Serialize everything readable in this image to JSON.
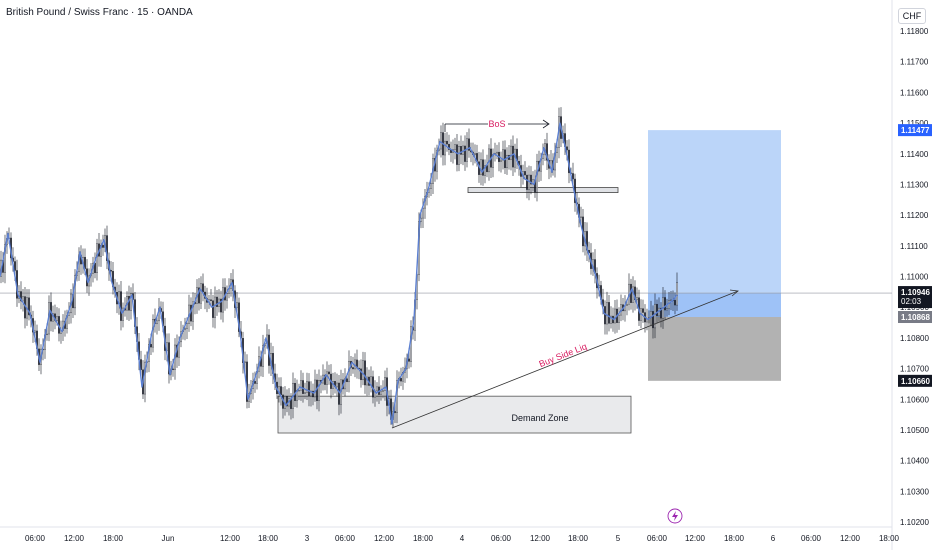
{
  "header": {
    "title": "British Pound / Swiss Franc · 15 · OANDA",
    "currency": "CHF"
  },
  "price_badges": {
    "target": "1.11477",
    "last_price": "1.10946",
    "countdown": "02:03",
    "entry": "1.10868",
    "stop": "1.10660"
  },
  "annotations": {
    "bos": "BoS",
    "buy_side_liq": "Buy Side Liq",
    "demand_zone": "Demand Zone"
  },
  "colors": {
    "candle": "#131722",
    "line": "#5b7fd1",
    "profit_zone": "#bbd5f9",
    "profit_strong": "#9ec2f7",
    "loss_zone": "#b2b2b2",
    "demand_fill": "#e9eaec",
    "label_pink": "#d81b60",
    "target_badge": "#2962ff",
    "last_badge": "#131722",
    "stop_badge": "#131722",
    "entry_badge": "#787b86",
    "grid_text": "#131722"
  },
  "icons": {
    "event": "lightning-icon"
  },
  "chart_data": {
    "type": "candlestick",
    "title": "British Pound / Swiss Franc · 15 · OANDA",
    "ylim": [
      1.1019,
      1.119
    ],
    "y_ticks": [
      "1.11800",
      "1.11700",
      "1.11600",
      "1.11500",
      "1.11400",
      "1.11300",
      "1.11200",
      "1.11100",
      "1.11000",
      "1.10900",
      "1.10800",
      "1.10700",
      "1.10600",
      "1.10500",
      "1.10400",
      "1.10300",
      "1.10200"
    ],
    "x_ticks": [
      "06:00",
      "12:00",
      "18:00",
      "Jun",
      "12:00",
      "18:00",
      "3",
      "06:00",
      "12:00",
      "18:00",
      "4",
      "06:00",
      "12:00",
      "18:00",
      "5",
      "06:00",
      "12:00",
      "18:00",
      "6",
      "06:00",
      "12:00",
      "18:00"
    ],
    "close_path": [
      [
        0,
        1.11
      ],
      [
        8,
        1.1114
      ],
      [
        18,
        1.1094
      ],
      [
        30,
        1.1088
      ],
      [
        40,
        1.1072
      ],
      [
        50,
        1.1089
      ],
      [
        62,
        1.1082
      ],
      [
        72,
        1.1092
      ],
      [
        80,
        1.1108
      ],
      [
        88,
        1.1098
      ],
      [
        96,
        1.1106
      ],
      [
        104,
        1.1112
      ],
      [
        112,
        1.1098
      ],
      [
        122,
        1.1088
      ],
      [
        132,
        1.1094
      ],
      [
        142,
        1.1064
      ],
      [
        152,
        1.1082
      ],
      [
        160,
        1.109
      ],
      [
        170,
        1.1068
      ],
      [
        180,
        1.108
      ],
      [
        190,
        1.1088
      ],
      [
        200,
        1.1096
      ],
      [
        212,
        1.109
      ],
      [
        222,
        1.1092
      ],
      [
        232,
        1.1098
      ],
      [
        240,
        1.1082
      ],
      [
        248,
        1.106
      ],
      [
        258,
        1.107
      ],
      [
        266,
        1.108
      ],
      [
        276,
        1.1064
      ],
      [
        286,
        1.1058
      ],
      [
        300,
        1.1064
      ],
      [
        314,
        1.1062
      ],
      [
        326,
        1.1068
      ],
      [
        340,
        1.1062
      ],
      [
        352,
        1.1072
      ],
      [
        364,
        1.1068
      ],
      [
        376,
        1.1062
      ],
      [
        386,
        1.1064
      ],
      [
        392,
        1.1052
      ],
      [
        398,
        1.1066
      ],
      [
        406,
        1.107
      ],
      [
        414,
        1.1086
      ],
      [
        420,
        1.112
      ],
      [
        428,
        1.1128
      ],
      [
        434,
        1.1136
      ],
      [
        440,
        1.1144
      ],
      [
        448,
        1.1142
      ],
      [
        458,
        1.114
      ],
      [
        470,
        1.1142
      ],
      [
        482,
        1.1134
      ],
      [
        494,
        1.114
      ],
      [
        504,
        1.1138
      ],
      [
        514,
        1.114
      ],
      [
        524,
        1.1132
      ],
      [
        534,
        1.113
      ],
      [
        544,
        1.1142
      ],
      [
        552,
        1.1134
      ],
      [
        560,
        1.115
      ],
      [
        568,
        1.1138
      ],
      [
        574,
        1.1128
      ],
      [
        580,
        1.1118
      ],
      [
        588,
        1.1108
      ],
      [
        596,
        1.11
      ],
      [
        604,
        1.1088
      ],
      [
        614,
        1.1086
      ],
      [
        624,
        1.109
      ],
      [
        632,
        1.1096
      ],
      [
        640,
        1.1088
      ],
      [
        648,
        1.1086
      ],
      [
        656,
        1.1088
      ],
      [
        664,
        1.109
      ],
      [
        672,
        1.1092
      ],
      [
        677,
        1.1094
      ]
    ],
    "current_price": 1.10946,
    "zones": {
      "demand": {
        "label": "Demand Zone",
        "low": 1.1049,
        "high": 1.1061
      },
      "bos_level": 1.1128,
      "target": 1.11477,
      "entry": 1.10868,
      "stop": 1.1066
    },
    "grid": false,
    "legend": "none"
  }
}
